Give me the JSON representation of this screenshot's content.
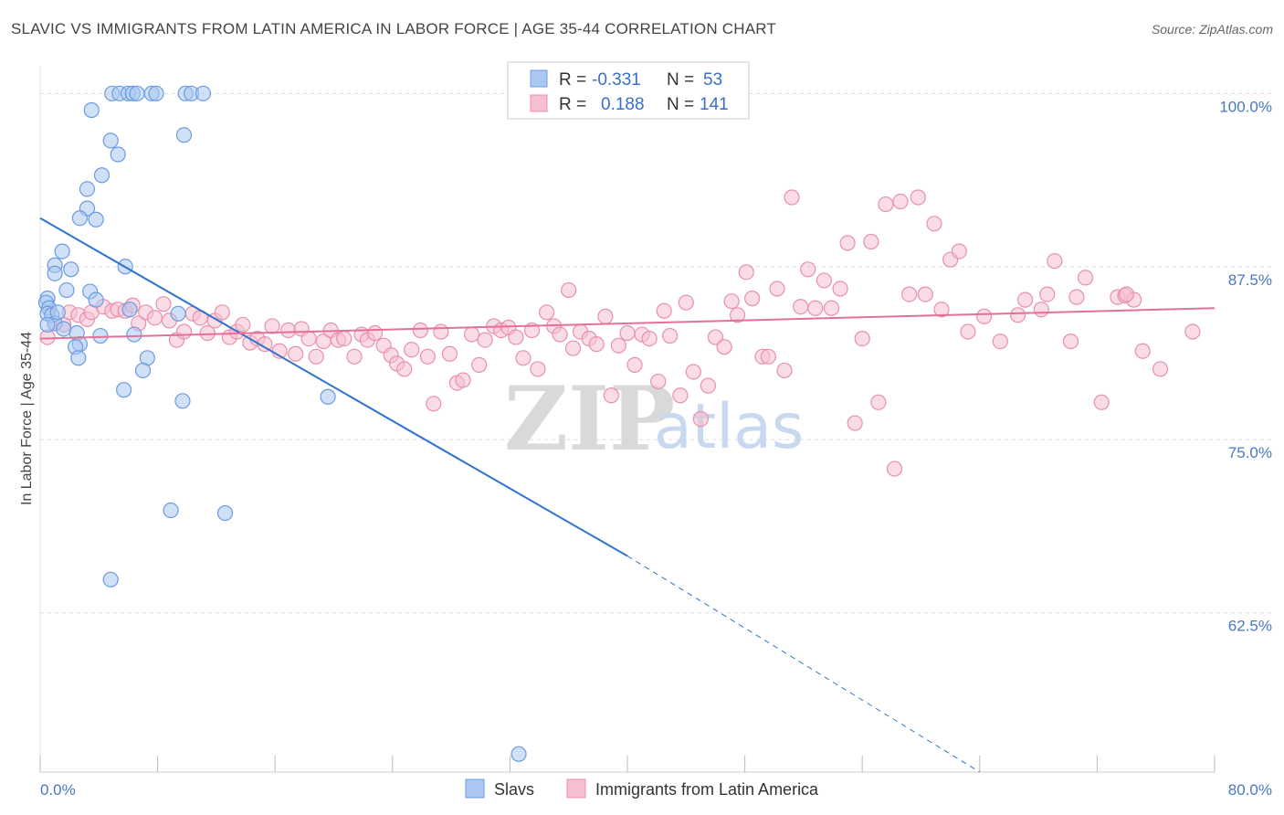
{
  "title": "SLAVIC VS IMMIGRANTS FROM LATIN AMERICA IN LABOR FORCE | AGE 35-44 CORRELATION CHART",
  "source": "Source: ZipAtlas.com",
  "watermark": {
    "zip": "ZIP",
    "atlas": "atlas"
  },
  "colors": {
    "slavs_fill": "#a9c7f0",
    "slavs_stroke": "#6b9be0",
    "slavs_line": "#2f73d0",
    "latin_fill": "#f6c0d0",
    "latin_stroke": "#e890ac",
    "latin_line": "#e4709a",
    "tick_label": "#4a78c2",
    "grid": "#dddddd"
  },
  "legend": {
    "rows": [
      {
        "r_label": "R =",
        "r_value": "-0.331",
        "n_label": "N =",
        "n_value": "53"
      },
      {
        "r_label": "R =",
        "r_value": "0.188",
        "n_label": "N =",
        "n_value": "141"
      }
    ]
  },
  "chart_data": {
    "type": "scatter",
    "title": "SLAVIC VS IMMIGRANTS FROM LATIN AMERICA IN LABOR FORCE | AGE 35-44 CORRELATION CHART",
    "xlabel": "",
    "ylabel": "In Labor Force | Age 35-44",
    "xlim": [
      0,
      80
    ],
    "ylim": [
      51,
      102
    ],
    "x_tick_labels": [
      "0.0%",
      "80.0%"
    ],
    "y_ticks": [
      62.5,
      75.0,
      87.5,
      100.0
    ],
    "y_tick_labels": [
      "62.5%",
      "75.0%",
      "87.5%",
      "100.0%"
    ],
    "grid": true,
    "legend_position": "top-center",
    "series": [
      {
        "name": "Slavs",
        "r": -0.331,
        "n": 53,
        "trend": {
          "x0": 0,
          "y0": 91.0,
          "x1": 40,
          "y1": 66.6,
          "dashed_to_x": 64,
          "dashed_to_y": 51.0
        },
        "points": [
          [
            4.9,
            100
          ],
          [
            5.4,
            100
          ],
          [
            6.0,
            100
          ],
          [
            6.3,
            100
          ],
          [
            6.6,
            100
          ],
          [
            7.6,
            100
          ],
          [
            7.9,
            100
          ],
          [
            9.9,
            100
          ],
          [
            10.3,
            100
          ],
          [
            11.1,
            100
          ],
          [
            3.5,
            98.8
          ],
          [
            4.8,
            96.6
          ],
          [
            5.3,
            95.6
          ],
          [
            4.2,
            94.1
          ],
          [
            3.2,
            93.1
          ],
          [
            9.8,
            97.0
          ],
          [
            3.2,
            91.7
          ],
          [
            2.7,
            91.0
          ],
          [
            3.8,
            90.9
          ],
          [
            1.5,
            88.6
          ],
          [
            2.1,
            87.3
          ],
          [
            1.0,
            87.6
          ],
          [
            1.0,
            87.0
          ],
          [
            5.8,
            87.5
          ],
          [
            1.8,
            85.8
          ],
          [
            3.4,
            85.7
          ],
          [
            0.5,
            85.2
          ],
          [
            0.4,
            84.9
          ],
          [
            0.6,
            84.5
          ],
          [
            3.8,
            85.1
          ],
          [
            6.1,
            84.4
          ],
          [
            9.4,
            84.1
          ],
          [
            0.5,
            84.1
          ],
          [
            0.8,
            84.0
          ],
          [
            1.0,
            83.4
          ],
          [
            1.6,
            83.0
          ],
          [
            2.5,
            82.7
          ],
          [
            4.1,
            82.5
          ],
          [
            6.4,
            82.6
          ],
          [
            2.7,
            81.9
          ],
          [
            2.4,
            81.7
          ],
          [
            2.6,
            80.9
          ],
          [
            7.3,
            80.9
          ],
          [
            7.0,
            80.0
          ],
          [
            5.7,
            78.6
          ],
          [
            9.7,
            77.8
          ],
          [
            19.6,
            78.1
          ],
          [
            8.9,
            69.9
          ],
          [
            12.6,
            69.7
          ],
          [
            4.8,
            64.9
          ],
          [
            32.6,
            52.3
          ],
          [
            0.5,
            83.3
          ],
          [
            1.2,
            84.2
          ]
        ]
      },
      {
        "name": "Immigrants from Latin America",
        "r": 0.188,
        "n": 141,
        "trend": {
          "x0": 0,
          "y0": 82.3,
          "x1": 80,
          "y1": 84.5
        },
        "points": [
          [
            0.5,
            82.4
          ],
          [
            1.0,
            83.4
          ],
          [
            1.6,
            83.3
          ],
          [
            2.0,
            84.2
          ],
          [
            2.6,
            84.0
          ],
          [
            3.2,
            83.7
          ],
          [
            3.5,
            84.2
          ],
          [
            4.3,
            84.6
          ],
          [
            4.9,
            84.3
          ],
          [
            5.3,
            84.4
          ],
          [
            5.8,
            84.3
          ],
          [
            6.3,
            84.7
          ],
          [
            6.7,
            83.4
          ],
          [
            7.2,
            84.2
          ],
          [
            7.8,
            83.8
          ],
          [
            8.4,
            84.8
          ],
          [
            8.8,
            83.6
          ],
          [
            9.3,
            82.2
          ],
          [
            9.8,
            82.8
          ],
          [
            10.4,
            84.1
          ],
          [
            10.9,
            83.8
          ],
          [
            11.4,
            82.7
          ],
          [
            11.9,
            83.6
          ],
          [
            12.4,
            84.2
          ],
          [
            12.9,
            82.4
          ],
          [
            13.4,
            82.8
          ],
          [
            13.8,
            83.3
          ],
          [
            14.3,
            82.0
          ],
          [
            14.8,
            82.3
          ],
          [
            15.3,
            81.9
          ],
          [
            15.8,
            83.2
          ],
          [
            16.3,
            81.4
          ],
          [
            16.9,
            82.9
          ],
          [
            17.4,
            81.2
          ],
          [
            17.8,
            83.0
          ],
          [
            18.3,
            82.3
          ],
          [
            18.8,
            81.0
          ],
          [
            19.3,
            82.1
          ],
          [
            19.8,
            82.9
          ],
          [
            20.3,
            82.2
          ],
          [
            20.7,
            82.3
          ],
          [
            21.4,
            81.0
          ],
          [
            21.9,
            82.6
          ],
          [
            22.3,
            82.2
          ],
          [
            22.8,
            82.7
          ],
          [
            23.4,
            81.8
          ],
          [
            23.9,
            81.1
          ],
          [
            24.3,
            80.5
          ],
          [
            24.8,
            80.1
          ],
          [
            25.3,
            81.5
          ],
          [
            25.9,
            82.9
          ],
          [
            26.4,
            81.0
          ],
          [
            26.8,
            77.6
          ],
          [
            27.3,
            82.8
          ],
          [
            27.9,
            81.2
          ],
          [
            28.4,
            79.1
          ],
          [
            28.8,
            79.3
          ],
          [
            29.4,
            82.6
          ],
          [
            29.9,
            80.4
          ],
          [
            30.3,
            82.2
          ],
          [
            30.9,
            83.2
          ],
          [
            31.4,
            82.9
          ],
          [
            31.9,
            83.1
          ],
          [
            32.4,
            82.4
          ],
          [
            32.9,
            80.9
          ],
          [
            33.5,
            82.9
          ],
          [
            33.9,
            80.1
          ],
          [
            34.5,
            84.2
          ],
          [
            35.0,
            83.2
          ],
          [
            35.4,
            82.6
          ],
          [
            36.0,
            85.8
          ],
          [
            36.3,
            81.6
          ],
          [
            36.8,
            82.8
          ],
          [
            37.4,
            82.3
          ],
          [
            37.9,
            81.9
          ],
          [
            38.5,
            83.9
          ],
          [
            38.9,
            78.2
          ],
          [
            39.4,
            81.8
          ],
          [
            40.0,
            82.7
          ],
          [
            40.5,
            80.4
          ],
          [
            41.0,
            82.6
          ],
          [
            41.5,
            82.3
          ],
          [
            42.1,
            79.2
          ],
          [
            42.5,
            84.3
          ],
          [
            42.9,
            82.5
          ],
          [
            43.6,
            78.2
          ],
          [
            44.0,
            84.9
          ],
          [
            44.5,
            79.9
          ],
          [
            45.0,
            76.5
          ],
          [
            45.5,
            78.9
          ],
          [
            46.0,
            82.4
          ],
          [
            46.6,
            81.7
          ],
          [
            47.1,
            85.0
          ],
          [
            47.5,
            84.0
          ],
          [
            48.1,
            87.1
          ],
          [
            48.5,
            85.2
          ],
          [
            49.2,
            81.0
          ],
          [
            49.6,
            81.0
          ],
          [
            50.2,
            85.9
          ],
          [
            50.7,
            80.0
          ],
          [
            51.2,
            92.5
          ],
          [
            51.8,
            84.6
          ],
          [
            52.3,
            87.3
          ],
          [
            52.8,
            84.5
          ],
          [
            53.4,
            86.5
          ],
          [
            53.9,
            84.5
          ],
          [
            54.5,
            85.9
          ],
          [
            55.0,
            89.2
          ],
          [
            55.5,
            76.2
          ],
          [
            56.0,
            82.3
          ],
          [
            56.6,
            89.3
          ],
          [
            57.1,
            77.7
          ],
          [
            57.6,
            92.0
          ],
          [
            58.2,
            72.9
          ],
          [
            58.6,
            92.2
          ],
          [
            59.2,
            85.5
          ],
          [
            59.8,
            92.5
          ],
          [
            60.3,
            85.5
          ],
          [
            60.9,
            90.6
          ],
          [
            61.4,
            84.4
          ],
          [
            62.0,
            88.0
          ],
          [
            62.6,
            88.6
          ],
          [
            63.2,
            82.8
          ],
          [
            64.3,
            83.9
          ],
          [
            65.4,
            82.1
          ],
          [
            66.6,
            84.0
          ],
          [
            67.1,
            85.1
          ],
          [
            68.2,
            84.4
          ],
          [
            68.6,
            85.5
          ],
          [
            69.1,
            87.9
          ],
          [
            70.2,
            82.1
          ],
          [
            70.6,
            85.3
          ],
          [
            71.2,
            86.7
          ],
          [
            72.3,
            77.7
          ],
          [
            73.4,
            85.3
          ],
          [
            73.9,
            85.4
          ],
          [
            74.5,
            85.1
          ],
          [
            75.1,
            81.4
          ],
          [
            76.3,
            80.1
          ],
          [
            78.5,
            82.8
          ],
          [
            74.0,
            85.5
          ]
        ]
      }
    ]
  },
  "bottom_legend": [
    {
      "label": "Slavs"
    },
    {
      "label": "Immigrants from Latin America"
    }
  ]
}
